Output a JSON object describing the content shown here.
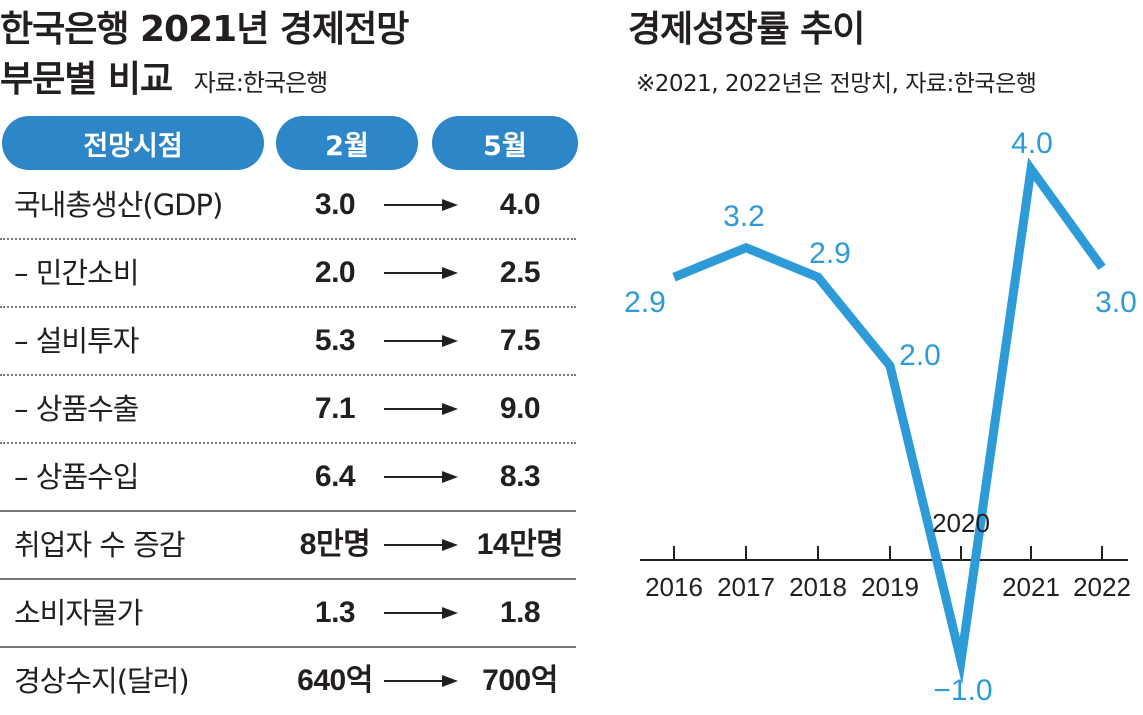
{
  "left": {
    "title_line1": "한국은행 2021년 경제전망",
    "title_line2": "부문별 비교",
    "source": "자료:한국은행",
    "headers": [
      "전망시점",
      "2월",
      "5월"
    ],
    "rows": [
      {
        "label": "국내총생산(GDP)",
        "feb": "3.0",
        "may": "4.0"
      },
      {
        "label": "– 민간소비",
        "feb": "2.0",
        "may": "2.5"
      },
      {
        "label": "– 설비투자",
        "feb": "5.3",
        "may": "7.5"
      },
      {
        "label": "– 상품수출",
        "feb": "7.1",
        "may": "9.0"
      },
      {
        "label": "– 상품수입",
        "feb": "6.4",
        "may": "8.3"
      },
      {
        "label": "취업자 수 증감",
        "feb": "8만명",
        "may": "14만명"
      },
      {
        "label": "소비자물가",
        "feb": "1.3",
        "may": "1.8"
      },
      {
        "label": "경상수지(달러)",
        "feb": "640억",
        "may": "700억"
      }
    ],
    "colors": {
      "header_bg": "#2d86c7",
      "header_text": "#ffffff"
    }
  },
  "chart_data": {
    "type": "line",
    "title": "경제성장률 추이",
    "subtitle": "※2021, 2022년은 전망치, 자료:한국은행",
    "x": [
      "2016",
      "2017",
      "2018",
      "2019",
      "2020",
      "2021",
      "2022"
    ],
    "values": [
      2.9,
      3.2,
      2.9,
      2.0,
      -1.0,
      4.0,
      3.0
    ],
    "value_labels": [
      "2.9",
      "3.2",
      "2.9",
      "2.0",
      "−1.0",
      "4.0",
      "3.0"
    ],
    "ylim": [
      -1.0,
      4.0
    ],
    "grid": false,
    "line_color": "#2d9bd8",
    "label_color": "#2d9bd8"
  }
}
